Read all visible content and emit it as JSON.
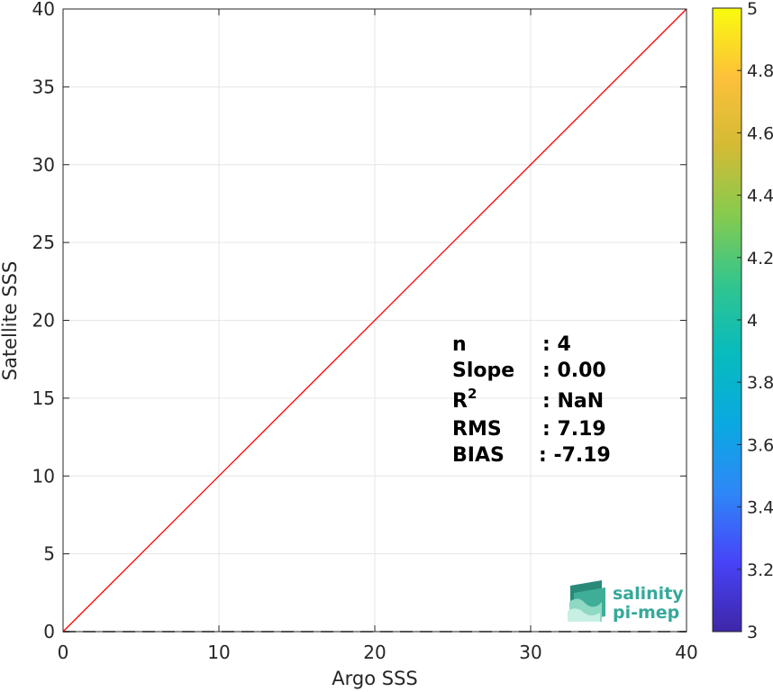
{
  "chart_data": {
    "type": "scatter",
    "xlabel": "Argo SSS",
    "ylabel": "Satellite SSS",
    "xlim": [
      0,
      40
    ],
    "ylim": [
      0,
      40
    ],
    "xticks": [
      0,
      10,
      20,
      30,
      40
    ],
    "yticks": [
      0,
      5,
      10,
      15,
      20,
      25,
      30,
      35,
      40
    ],
    "grid": true,
    "reference_line": {
      "x": [
        0,
        40
      ],
      "y": [
        0,
        40
      ],
      "color": "#ff0000"
    },
    "zero_line": {
      "y": 0,
      "style": "dashed",
      "color": "#555555"
    },
    "points": [],
    "colorbar": {
      "min": 3,
      "max": 5,
      "ticks": [
        "3",
        "3.2",
        "3.4",
        "3.6",
        "3.8",
        "4",
        "4.2",
        "4.4",
        "4.6",
        "4.8",
        "5"
      ],
      "colormap": [
        "#3e26a8",
        "#4743f8",
        "#2e87f7",
        "#0aa9e1",
        "#07bbbe",
        "#31c58f",
        "#85cb4e",
        "#d3bb35",
        "#fdc03a",
        "#f9fb0e"
      ]
    },
    "stats": [
      {
        "label": "n",
        "value": ": 4"
      },
      {
        "label": "Slope",
        "value": ": 0.00"
      },
      {
        "label": "R",
        "sup": "2",
        "value": ": NaN"
      },
      {
        "label": "RMS",
        "value": ": 7.19"
      },
      {
        "label": "BIAS",
        "value": ": -7.19"
      }
    ]
  },
  "logo": {
    "line1": "salinity",
    "line2": "pi-mep"
  }
}
